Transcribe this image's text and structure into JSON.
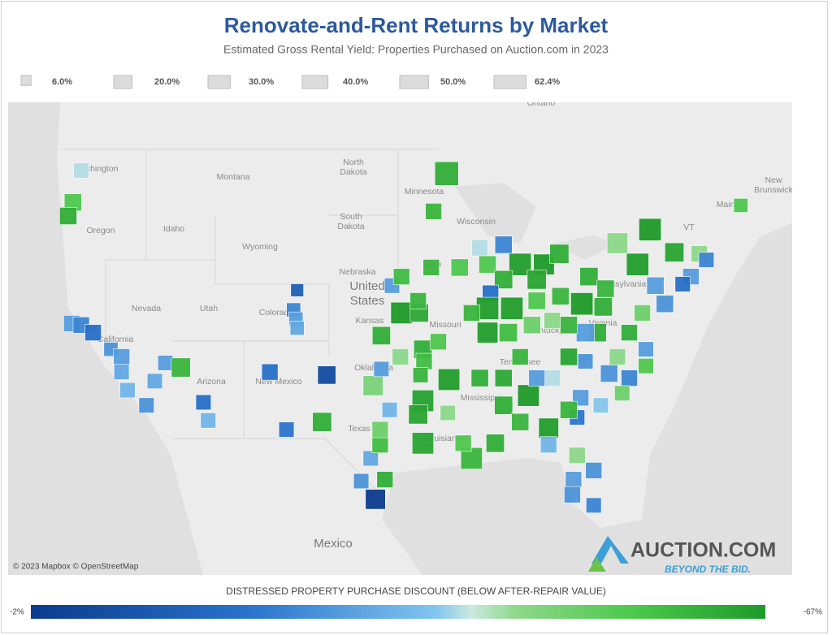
{
  "header": {
    "title": "Renovate-and-Rent Returns by Market",
    "subtitle": "Estimated Gross Rental Yield: Properties Purchased on Auction.com in 2023"
  },
  "size_legend": [
    {
      "value": 6,
      "label": "6.0%"
    },
    {
      "value": 20,
      "label": "20.0%"
    },
    {
      "value": 30,
      "label": "30.0%"
    },
    {
      "value": 40,
      "label": "40.0%"
    },
    {
      "value": 50,
      "label": "50.0%"
    },
    {
      "value": 62.4,
      "label": "62.4%"
    }
  ],
  "map": {
    "places": [
      "Ontario",
      "Washington",
      "Montana",
      "North",
      "Dakota",
      "Minnesota",
      "Wisconsin",
      "Oregon",
      "Idaho",
      "South",
      "Dakota",
      "Wyoming",
      "Nebraska",
      "United",
      "States",
      "Iowa",
      "Nevada",
      "Utah",
      "Colorado",
      "Kansas",
      "Missouri",
      "Kentucky",
      "Virginia",
      "Pennsylvania",
      "VT",
      "Maine",
      "New",
      "Brunswick",
      "California",
      "Arizona",
      "New Mexico",
      "Oklahoma",
      "Tennessee",
      "Mississippi",
      "Texas",
      "Louisiana",
      "Mexico"
    ],
    "attribution": "© 2023 Mapbox © OpenStreetMap",
    "markets": [
      {
        "lon": -122.3,
        "lat": 47.6,
        "yield": 14,
        "discount": -40
      },
      {
        "lon": -123.0,
        "lat": 45.5,
        "yield": 18,
        "discount": -55
      },
      {
        "lon": -123.4,
        "lat": 44.6,
        "yield": 18,
        "discount": -62
      },
      {
        "lon": -123.1,
        "lat": 37.5,
        "yield": 16,
        "discount": -30
      },
      {
        "lon": -122.3,
        "lat": 37.4,
        "yield": 16,
        "discount": -25
      },
      {
        "lon": -121.3,
        "lat": 36.9,
        "yield": 16,
        "discount": -20
      },
      {
        "lon": -119.8,
        "lat": 35.8,
        "yield": 12,
        "discount": -28
      },
      {
        "lon": -118.9,
        "lat": 35.3,
        "yield": 16,
        "discount": -30
      },
      {
        "lon": -118.9,
        "lat": 34.3,
        "yield": 14,
        "discount": -32
      },
      {
        "lon": -118.4,
        "lat": 33.1,
        "yield": 14,
        "discount": -35
      },
      {
        "lon": -116.8,
        "lat": 32.1,
        "yield": 14,
        "discount": -28
      },
      {
        "lon": -115.2,
        "lat": 34.9,
        "yield": 14,
        "discount": -30
      },
      {
        "lon": -113.9,
        "lat": 34.6,
        "yield": 22,
        "discount": -60
      },
      {
        "lon": -116.1,
        "lat": 33.7,
        "yield": 14,
        "discount": -32
      },
      {
        "lon": -112.0,
        "lat": 32.3,
        "yield": 14,
        "discount": -20
      },
      {
        "lon": -111.6,
        "lat": 31.1,
        "yield": 14,
        "discount": -35
      },
      {
        "lon": -104.1,
        "lat": 39.7,
        "yield": 10,
        "discount": -15
      },
      {
        "lon": -104.4,
        "lat": 38.4,
        "yield": 12,
        "discount": -25
      },
      {
        "lon": -104.2,
        "lat": 37.8,
        "yield": 12,
        "discount": -30
      },
      {
        "lon": -104.1,
        "lat": 37.2,
        "yield": 12,
        "discount": -32
      },
      {
        "lon": -106.4,
        "lat": 34.3,
        "yield": 16,
        "discount": -20
      },
      {
        "lon": -101.6,
        "lat": 34.1,
        "yield": 20,
        "discount": -8
      },
      {
        "lon": -102.0,
        "lat": 31.0,
        "yield": 22,
        "discount": -62
      },
      {
        "lon": -105.0,
        "lat": 30.5,
        "yield": 14,
        "discount": -22
      },
      {
        "lon": -97.5,
        "lat": 25.9,
        "yield": 24,
        "discount": -3
      },
      {
        "lon": -98.7,
        "lat": 27.1,
        "yield": 14,
        "discount": -28
      },
      {
        "lon": -96.7,
        "lat": 27.2,
        "yield": 16,
        "discount": -62
      },
      {
        "lon": -97.9,
        "lat": 28.6,
        "yield": 14,
        "discount": -32
      },
      {
        "lon": -97.1,
        "lat": 29.5,
        "yield": 16,
        "discount": -58
      },
      {
        "lon": -97.1,
        "lat": 30.5,
        "yield": 16,
        "discount": -50
      },
      {
        "lon": -96.3,
        "lat": 31.8,
        "yield": 14,
        "discount": -35
      },
      {
        "lon": -93.5,
        "lat": 29.6,
        "yield": 28,
        "discount": -64
      },
      {
        "lon": -97.7,
        "lat": 33.4,
        "yield": 24,
        "discount": -48
      },
      {
        "lon": -95.4,
        "lat": 35.3,
        "yield": 16,
        "discount": -45
      },
      {
        "lon": -97.0,
        "lat": 34.5,
        "yield": 14,
        "discount": -30
      },
      {
        "lon": -97.0,
        "lat": 36.7,
        "yield": 20,
        "discount": -62
      },
      {
        "lon": -95.3,
        "lat": 38.2,
        "yield": 28,
        "discount": -67
      },
      {
        "lon": -93.8,
        "lat": 38.2,
        "yield": 20,
        "discount": -63
      },
      {
        "lon": -93.9,
        "lat": 39.0,
        "yield": 16,
        "discount": -60
      },
      {
        "lon": -96.1,
        "lat": 40.0,
        "yield": 14,
        "discount": -30
      },
      {
        "lon": -95.3,
        "lat": 40.6,
        "yield": 16,
        "discount": -58
      },
      {
        "lon": -93.5,
        "lat": 35.8,
        "yield": 20,
        "discount": -62
      },
      {
        "lon": -92.2,
        "lat": 36.3,
        "yield": 16,
        "discount": -55
      },
      {
        "lon": -93.4,
        "lat": 35.0,
        "yield": 16,
        "discount": -58
      },
      {
        "lon": -93.7,
        "lat": 34.1,
        "yield": 14,
        "discount": -60
      },
      {
        "lon": -91.3,
        "lat": 33.8,
        "yield": 28,
        "discount": -66
      },
      {
        "lon": -93.5,
        "lat": 32.4,
        "yield": 28,
        "discount": -65
      },
      {
        "lon": -93.9,
        "lat": 31.5,
        "yield": 22,
        "discount": -64
      },
      {
        "lon": -91.4,
        "lat": 31.6,
        "yield": 14,
        "discount": -45
      },
      {
        "lon": -91.5,
        "lat": 47.4,
        "yield": 34,
        "discount": -62
      },
      {
        "lon": -92.6,
        "lat": 44.9,
        "yield": 16,
        "discount": -60
      },
      {
        "lon": -88.7,
        "lat": 42.5,
        "yield": 16,
        "discount": -40
      },
      {
        "lon": -86.7,
        "lat": 42.7,
        "yield": 18,
        "discount": -25
      },
      {
        "lon": -88.05,
        "lat": 41.4,
        "yield": 18,
        "discount": -55
      },
      {
        "lon": -85.3,
        "lat": 41.4,
        "yield": 30,
        "discount": -66
      },
      {
        "lon": -83.3,
        "lat": 41.4,
        "yield": 26,
        "discount": -67
      },
      {
        "lon": -82.0,
        "lat": 42.1,
        "yield": 22,
        "discount": -62
      },
      {
        "lon": -83.9,
        "lat": 40.4,
        "yield": 22,
        "discount": -64
      },
      {
        "lon": -86.7,
        "lat": 40.4,
        "yield": 20,
        "discount": -62
      },
      {
        "lon": -87.8,
        "lat": 39.5,
        "yield": 16,
        "discount": -20
      },
      {
        "lon": -88.05,
        "lat": 38.5,
        "yield": 30,
        "discount": -66
      },
      {
        "lon": -86.0,
        "lat": 38.5,
        "yield": 30,
        "discount": -66
      },
      {
        "lon": -83.9,
        "lat": 39.0,
        "yield": 18,
        "discount": -55
      },
      {
        "lon": -81.9,
        "lat": 39.3,
        "yield": 18,
        "discount": -60
      },
      {
        "lon": -80.1,
        "lat": 38.8,
        "yield": 30,
        "discount": -67
      },
      {
        "lon": -78.3,
        "lat": 38.6,
        "yield": 20,
        "discount": -62
      },
      {
        "lon": -79.5,
        "lat": 40.6,
        "yield": 20,
        "discount": -62
      },
      {
        "lon": -78.1,
        "lat": 39.8,
        "yield": 18,
        "discount": -60
      },
      {
        "lon": -77.1,
        "lat": 42.8,
        "yield": 26,
        "discount": -45
      },
      {
        "lon": -75.4,
        "lat": 41.4,
        "yield": 30,
        "discount": -66
      },
      {
        "lon": -74.35,
        "lat": 43.7,
        "yield": 30,
        "discount": -67
      },
      {
        "lon": -72.3,
        "lat": 42.2,
        "yield": 22,
        "discount": -64
      },
      {
        "lon": -70.2,
        "lat": 42.1,
        "yield": 16,
        "discount": -45
      },
      {
        "lon": -69.6,
        "lat": 41.7,
        "yield": 14,
        "discount": -25
      },
      {
        "lon": -70.9,
        "lat": 40.6,
        "yield": 16,
        "discount": -30
      },
      {
        "lon": -71.6,
        "lat": 40.1,
        "yield": 14,
        "discount": -20
      },
      {
        "lon": -73.1,
        "lat": 38.8,
        "yield": 18,
        "discount": -28
      },
      {
        "lon": -73.9,
        "lat": 40.0,
        "yield": 18,
        "discount": -30
      },
      {
        "lon": -75.0,
        "lat": 38.2,
        "yield": 16,
        "discount": -50
      },
      {
        "lon": -76.1,
        "lat": 36.9,
        "yield": 16,
        "discount": -62
      },
      {
        "lon": -77.1,
        "lat": 35.3,
        "yield": 16,
        "discount": -45
      },
      {
        "lon": -78.8,
        "lat": 36.9,
        "yield": 20,
        "discount": -62
      },
      {
        "lon": -79.8,
        "lat": 36.9,
        "yield": 20,
        "discount": -30
      },
      {
        "lon": -81.2,
        "lat": 37.4,
        "yield": 18,
        "discount": -60
      },
      {
        "lon": -81.2,
        "lat": 35.3,
        "yield": 18,
        "discount": -64
      },
      {
        "lon": -79.8,
        "lat": 35.0,
        "yield": 14,
        "discount": -28
      },
      {
        "lon": -77.8,
        "lat": 34.2,
        "yield": 18,
        "discount": -28
      },
      {
        "lon": -76.1,
        "lat": 33.9,
        "yield": 16,
        "discount": -25
      },
      {
        "lon": -74.7,
        "lat": 34.7,
        "yield": 14,
        "discount": -55
      },
      {
        "lon": -74.7,
        "lat": 35.8,
        "yield": 14,
        "discount": -30
      },
      {
        "lon": -76.7,
        "lat": 32.9,
        "yield": 14,
        "discount": -50
      },
      {
        "lon": -78.5,
        "lat": 32.1,
        "yield": 14,
        "discount": -38
      },
      {
        "lon": -80.2,
        "lat": 32.6,
        "yield": 16,
        "discount": -30
      },
      {
        "lon": -80.5,
        "lat": 31.3,
        "yield": 14,
        "discount": -22
      },
      {
        "lon": -79.1,
        "lat": 27.8,
        "yield": 16,
        "discount": -28
      },
      {
        "lon": -80.8,
        "lat": 27.2,
        "yield": 16,
        "discount": -30
      },
      {
        "lon": -79.1,
        "lat": 25.5,
        "yield": 14,
        "discount": -25
      },
      {
        "lon": -80.9,
        "lat": 26.2,
        "yield": 16,
        "discount": -28
      },
      {
        "lon": -80.5,
        "lat": 28.8,
        "yield": 16,
        "discount": -45
      },
      {
        "lon": -84.6,
        "lat": 32.75,
        "yield": 28,
        "discount": -67
      },
      {
        "lon": -86.7,
        "lat": 32.1,
        "yield": 20,
        "discount": -62
      },
      {
        "lon": -82.9,
        "lat": 30.6,
        "yield": 24,
        "discount": -66
      },
      {
        "lon": -85.3,
        "lat": 31.0,
        "yield": 18,
        "discount": -60
      },
      {
        "lon": -87.4,
        "lat": 29.6,
        "yield": 20,
        "discount": -62
      },
      {
        "lon": -89.4,
        "lat": 28.6,
        "yield": 28,
        "discount": -60
      },
      {
        "lon": -90.1,
        "lat": 29.6,
        "yield": 16,
        "discount": -55
      },
      {
        "lon": -82.9,
        "lat": 29.5,
        "yield": 16,
        "discount": -35
      },
      {
        "lon": -81.2,
        "lat": 31.8,
        "yield": 18,
        "discount": -60
      },
      {
        "lon": -82.6,
        "lat": 33.9,
        "yield": 16,
        "discount": -40
      },
      {
        "lon": -83.9,
        "lat": 33.9,
        "yield": 16,
        "discount": -30
      },
      {
        "lon": -85.3,
        "lat": 35.3,
        "yield": 16,
        "discount": -60
      },
      {
        "lon": -86.7,
        "lat": 33.9,
        "yield": 18,
        "discount": -63
      },
      {
        "lon": -88.7,
        "lat": 33.9,
        "yield": 18,
        "discount": -62
      },
      {
        "lon": -88.05,
        "lat": 36.9,
        "yield": 26,
        "discount": -66
      },
      {
        "lon": -86.3,
        "lat": 36.9,
        "yield": 20,
        "discount": -58
      },
      {
        "lon": -84.3,
        "lat": 37.4,
        "yield": 18,
        "discount": -50
      },
      {
        "lon": -82.6,
        "lat": 37.7,
        "yield": 16,
        "discount": -45
      },
      {
        "lon": -89.4,
        "lat": 38.2,
        "yield": 16,
        "discount": -60
      },
      {
        "lon": -90.4,
        "lat": 41.2,
        "yield": 18,
        "discount": -55
      },
      {
        "lon": -92.8,
        "lat": 41.2,
        "yield": 16,
        "discount": -60
      },
      {
        "lon": -66.7,
        "lat": 45.3,
        "yield": 12,
        "discount": -55
      }
    ]
  },
  "logo": {
    "name": "AUCTION.COM",
    "tagline": "BEYOND THE BID."
  },
  "color_legend": {
    "title": "DISTRESSED PROPERTY PURCHASE DISCOUNT (BELOW AFTER-REPAIR VALUE)",
    "min": {
      "value": -2,
      "label": "-2%"
    },
    "max": {
      "value": -67,
      "label": "-67%"
    }
  }
}
